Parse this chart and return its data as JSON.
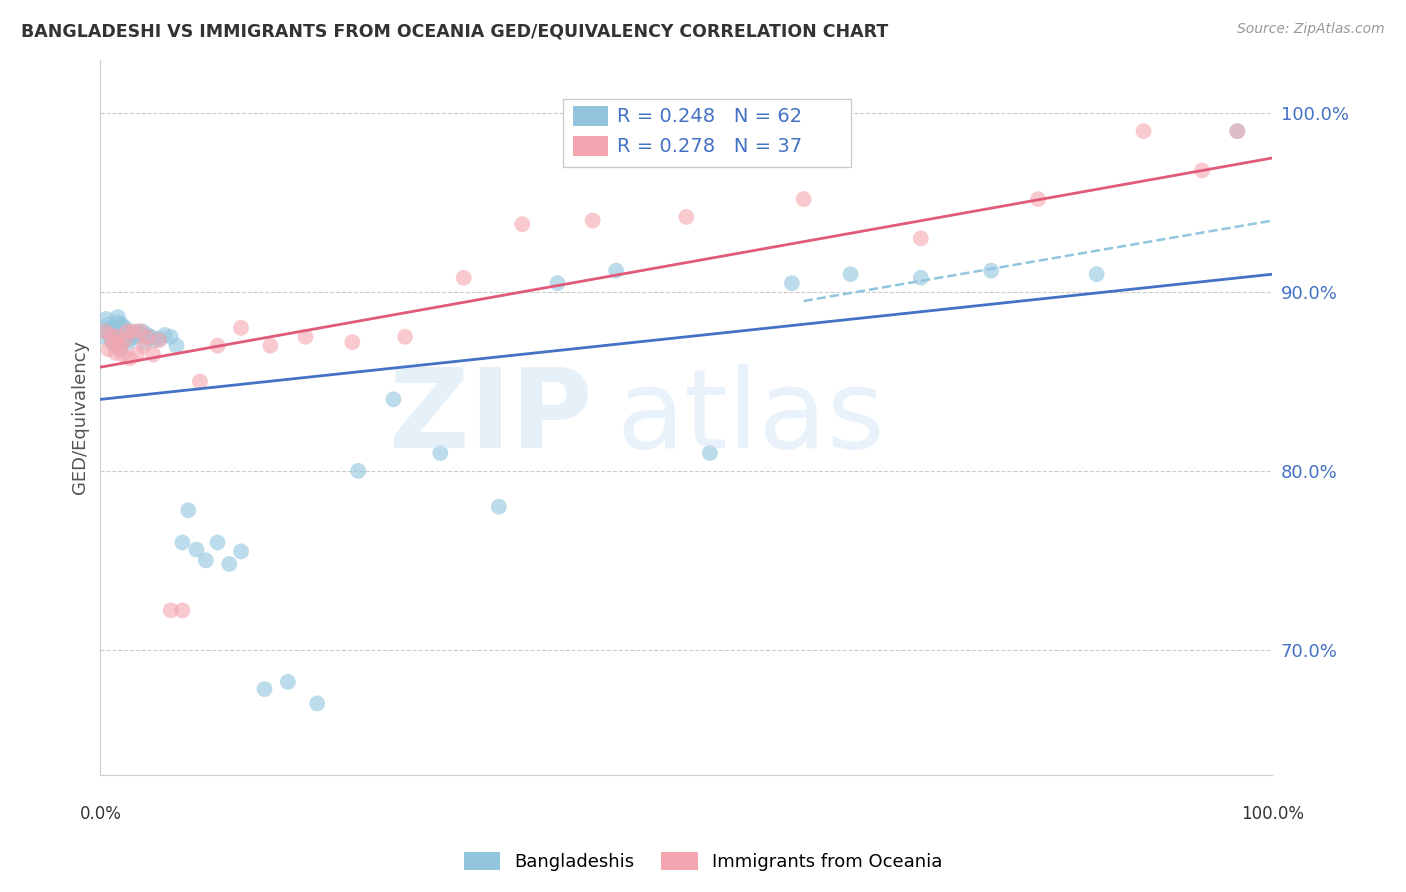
{
  "title": "BANGLADESHI VS IMMIGRANTS FROM OCEANIA GED/EQUIVALENCY CORRELATION CHART",
  "source": "Source: ZipAtlas.com",
  "ylabel": "GED/Equivalency",
  "xlim": [
    0.0,
    1.0
  ],
  "ylim": [
    0.63,
    1.03
  ],
  "yticks": [
    0.7,
    0.8,
    0.9,
    1.0
  ],
  "ytick_labels": [
    "70.0%",
    "80.0%",
    "90.0%",
    "100.0%"
  ],
  "blue_color": "#92c5de",
  "pink_color": "#f4a6b0",
  "line_blue_color": "#4472c4",
  "line_pink_color": "#e05b7a",
  "dashed_color": "#92c5de",
  "blue_scatter_x": [
    0.003,
    0.005,
    0.006,
    0.007,
    0.008,
    0.009,
    0.01,
    0.011,
    0.012,
    0.013,
    0.013,
    0.014,
    0.015,
    0.015,
    0.016,
    0.017,
    0.017,
    0.018,
    0.019,
    0.02,
    0.021,
    0.022,
    0.023,
    0.024,
    0.025,
    0.026,
    0.028,
    0.03,
    0.032,
    0.034,
    0.036,
    0.038,
    0.04,
    0.043,
    0.046,
    0.05,
    0.055,
    0.06,
    0.065,
    0.07,
    0.075,
    0.082,
    0.09,
    0.1,
    0.11,
    0.12,
    0.14,
    0.16,
    0.185,
    0.22,
    0.25,
    0.29,
    0.34,
    0.39,
    0.44,
    0.52,
    0.59,
    0.64,
    0.7,
    0.76,
    0.85,
    0.97
  ],
  "blue_scatter_y": [
    0.875,
    0.885,
    0.878,
    0.882,
    0.876,
    0.88,
    0.872,
    0.877,
    0.874,
    0.879,
    0.87,
    0.876,
    0.883,
    0.886,
    0.877,
    0.875,
    0.868,
    0.882,
    0.876,
    0.873,
    0.88,
    0.877,
    0.878,
    0.872,
    0.875,
    0.874,
    0.876,
    0.877,
    0.878,
    0.876,
    0.878,
    0.872,
    0.876,
    0.875,
    0.873,
    0.874,
    0.876,
    0.875,
    0.87,
    0.76,
    0.778,
    0.756,
    0.75,
    0.76,
    0.748,
    0.755,
    0.678,
    0.682,
    0.67,
    0.8,
    0.84,
    0.81,
    0.78,
    0.905,
    0.912,
    0.81,
    0.905,
    0.91,
    0.908,
    0.912,
    0.91,
    0.99
  ],
  "pink_scatter_x": [
    0.004,
    0.007,
    0.009,
    0.011,
    0.013,
    0.015,
    0.017,
    0.019,
    0.021,
    0.023,
    0.025,
    0.028,
    0.031,
    0.034,
    0.037,
    0.04,
    0.045,
    0.05,
    0.06,
    0.07,
    0.085,
    0.1,
    0.12,
    0.145,
    0.175,
    0.215,
    0.26,
    0.31,
    0.36,
    0.42,
    0.5,
    0.6,
    0.7,
    0.8,
    0.89,
    0.94,
    0.97
  ],
  "pink_scatter_y": [
    0.878,
    0.868,
    0.876,
    0.872,
    0.866,
    0.875,
    0.87,
    0.865,
    0.873,
    0.878,
    0.863,
    0.878,
    0.865,
    0.878,
    0.87,
    0.875,
    0.865,
    0.873,
    0.722,
    0.722,
    0.85,
    0.87,
    0.88,
    0.87,
    0.875,
    0.872,
    0.875,
    0.908,
    0.938,
    0.94,
    0.942,
    0.952,
    0.93,
    0.952,
    0.99,
    0.968,
    0.99
  ],
  "blue_line_y_start": 0.84,
  "blue_line_y_end": 0.91,
  "pink_line_y_start": 0.858,
  "pink_line_y_end": 0.975,
  "dashed_line_x_start": 0.6,
  "dashed_line_x_end": 1.0,
  "dashed_line_y_start": 0.895,
  "dashed_line_y_end": 0.94,
  "watermark_zip": "ZIP",
  "watermark_atlas": "atlas"
}
